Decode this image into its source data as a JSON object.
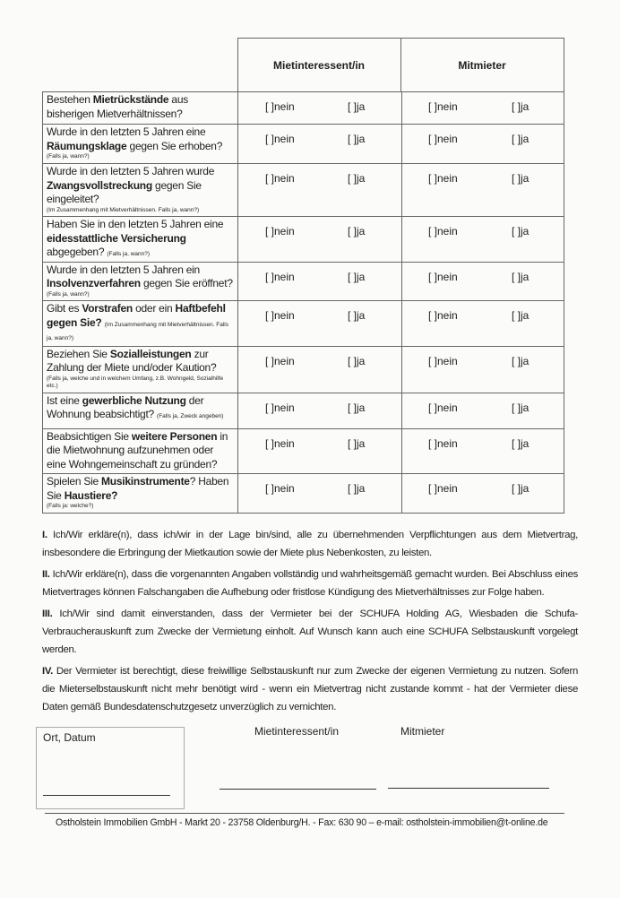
{
  "header": {
    "col1": "Mietinteressent/in",
    "col2": "Mitmieter"
  },
  "options": {
    "no": "[  ]nein",
    "yes": "[  ]ja"
  },
  "rows": [
    {
      "parts": [
        {
          "t": "Bestehen "
        },
        {
          "t": "Mietrückstände",
          "b": true
        },
        {
          "t": " aus bisherigen Mietverhältnissen?"
        }
      ],
      "note": ""
    },
    {
      "parts": [
        {
          "t": "Wurde in den letzten 5 Jahren eine "
        },
        {
          "t": "Räumungsklage",
          "b": true
        },
        {
          "t": " gegen Sie erhoben?"
        }
      ],
      "note": "(Falls ja, wann?)"
    },
    {
      "parts": [
        {
          "t": "Wurde in den letzten 5 Jahren wurde "
        },
        {
          "t": "Zwangsvollstreckung",
          "b": true
        },
        {
          "t": " gegen Sie eingeleitet?"
        }
      ],
      "note": "(Im Zusammenhang mit Mietverhältnissen. Falls ja, wann?)"
    },
    {
      "parts": [
        {
          "t": "Haben Sie in den letzten 5 Jahren eine "
        },
        {
          "t": "eidesstattliche Versicherung",
          "b": true
        },
        {
          "t": " abgegeben? "
        }
      ],
      "inline_note": "(Falls ja, wann?)",
      "note": ""
    },
    {
      "parts": [
        {
          "t": "Wurde in den letzten 5 Jahren ein "
        },
        {
          "t": "Insolvenzverfahren",
          "b": true
        },
        {
          "t": " gegen Sie eröffnet?"
        }
      ],
      "note": "(Falls ja, wann?)"
    },
    {
      "parts": [
        {
          "t": "Gibt es "
        },
        {
          "t": "Vorstrafen",
          "b": true
        },
        {
          "t": " oder ein "
        },
        {
          "t": "Haftbefehl gegen Sie?",
          "b": true
        },
        {
          "t": " "
        }
      ],
      "inline_note": "(Im Zusammenhang mit Mietverhältnissen. Falls ja, wann?)",
      "note": ""
    },
    {
      "parts": [
        {
          "t": "Beziehen Sie "
        },
        {
          "t": "Sozialleistungen",
          "b": true
        },
        {
          "t": " zur Zahlung der Miete und/oder Kaution?"
        }
      ],
      "note": "(Falls ja, welche und in welchem Umfang, z.B. Wohngeld, Sozialhilfe etc.)"
    },
    {
      "parts": [
        {
          "t": "Ist eine "
        },
        {
          "t": "gewerbliche Nutzung",
          "b": true
        },
        {
          "t": " der Wohnung beabsichtigt? "
        }
      ],
      "inline_note": "(Falls ja, Zweck angeben)",
      "note": ""
    },
    {
      "parts": [
        {
          "t": "Beabsichtigen Sie "
        },
        {
          "t": "weitere Personen",
          "b": true
        },
        {
          "t": " in die Mietwohnung aufzunehmen oder eine Wohngemeinschaft zu gründen?"
        }
      ],
      "note": ""
    },
    {
      "parts": [
        {
          "t": "Spielen Sie "
        },
        {
          "t": "Musikinstrumente",
          "b": true
        },
        {
          "t": "? Haben Sie "
        },
        {
          "t": "Haustiere?",
          "b": true
        }
      ],
      "note": "(Falls ja: welche?)"
    }
  ],
  "paragraphs": [
    {
      "num": "I.",
      "text": " Ich/Wir erkläre(n), dass ich/wir in der Lage bin/sind, alle zu übernehmenden Verpflichtungen aus dem Mietvertrag, insbesondere die Erbringung der Mietkaution sowie der Miete plus Nebenkosten, zu leisten."
    },
    {
      "num": "II.",
      "text": " Ich/Wir erkläre(n), dass die vorgenannten Angaben vollständig und wahrheitsgemäß gemacht wurden. Bei Abschluss eines Mietvertrages können Falschangaben die Aufhebung oder fristlose Kündigung des Mietverhältnisses zur Folge haben."
    },
    {
      "num": "III.",
      "text": " Ich/Wir sind damit einverstanden, dass der Vermieter bei der SCHUFA Holding AG, Wiesbaden die Schufa-Verbraucherauskunft zum Zwecke der Vermietung einholt. Auf Wunsch kann auch eine SCHUFA Selbstauskunft vorgelegt werden."
    },
    {
      "num": "IV.",
      "text": " Der Vermieter ist berechtigt, diese freiwillige Selbstauskunft nur zum Zwecke der eigenen Vermietung zu nutzen. Sofern die Mieterselbstauskunft nicht mehr benötigt wird - wenn ein Mietvertrag nicht zustande kommt - hat der Vermieter diese Daten gemäß Bundesdatenschutzgesetz unverzüglich zu vernichten."
    }
  ],
  "signature": {
    "place_date": "Ort, Datum",
    "tenant": "Mietinteressent/in",
    "cotenant": "Mitmieter"
  },
  "footer": "Ostholstein Immobilien GmbH - Markt 20 - 23758 Oldenburg/H. - Fax: 630 90 – e-mail: ostholstein-immobilien@t-online.de"
}
